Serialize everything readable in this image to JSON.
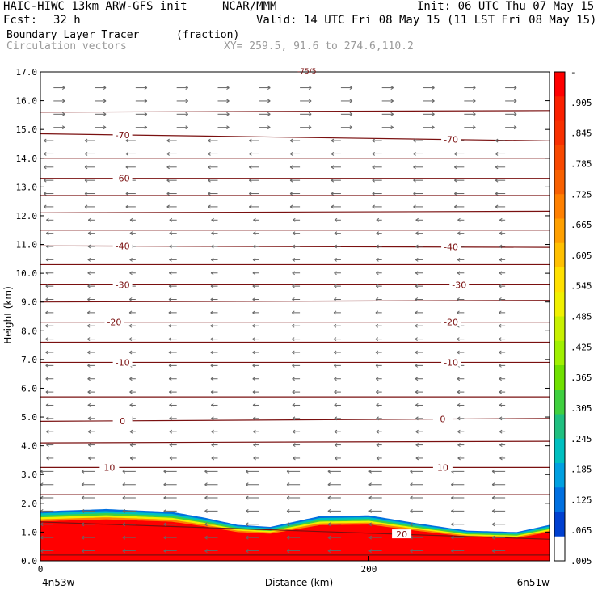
{
  "header": {
    "model": "HAIC-HIWC 13km ARW-GFS init",
    "org": "NCAR/MMM",
    "init": "Init: 06 UTC Thu 07 May 15",
    "fcst_label": "Fcst:",
    "fcst_value": "32 h",
    "valid": "Valid: 14 UTC Fri 08 May 15 (11 LST Fri 08 May 15)",
    "field_name": "Boundary Layer Tracer",
    "field_units": "(fraction)",
    "vector_name": "Circulation vectors",
    "xy": "XY= 259.5, 91.6 to 274.6,110.2"
  },
  "chart_data": {
    "type": "heatmap",
    "xlabel": "Distance (km)",
    "ylabel": "Height (km)",
    "xlim": [
      0,
      310
    ],
    "ylim": [
      0,
      17
    ],
    "x_ticks": [
      0,
      200
    ],
    "y_ticks": [
      "0.0",
      "1.0",
      "2.0",
      "3.0",
      "4.0",
      "5.0",
      "6.0",
      "7.0",
      "8.0",
      "9.0",
      "10.0",
      "11.0",
      "12.0",
      "13.0",
      "14.0",
      "15.0",
      "16.0",
      "17.0"
    ],
    "x_left_label": "4n53w",
    "x_right_label": "6n51w",
    "top_annotation": "-75/5",
    "tracer_top_km": {
      "x": [
        0,
        40,
        80,
        100,
        120,
        140,
        170,
        200,
        230,
        260,
        290,
        310
      ],
      "y": [
        1.72,
        1.8,
        1.7,
        1.5,
        1.25,
        1.18,
        1.55,
        1.58,
        1.3,
        1.05,
        1.0,
        1.25
      ]
    },
    "temperature_contours": [
      {
        "label": "-70",
        "heights_km": [
          14.85,
          14.6
        ],
        "label_x": [
          50,
          250
        ]
      },
      {
        "label": "-60",
        "heights_km": [
          13.3,
          13.3
        ],
        "label_x": [
          50,
          null
        ]
      },
      {
        "label": "-40",
        "heights_km": [
          10.95,
          10.9
        ],
        "label_x": [
          50,
          250
        ]
      },
      {
        "label": "-30",
        "heights_km": [
          9.6,
          9.6
        ],
        "label_x": [
          50,
          255
        ]
      },
      {
        "label": "-20",
        "heights_km": [
          8.3,
          8.3
        ],
        "label_x": [
          45,
          250
        ]
      },
      {
        "label": "-10",
        "heights_km": [
          6.9,
          6.9
        ],
        "label_x": [
          50,
          250
        ]
      },
      {
        "label": "0",
        "heights_km": [
          4.85,
          4.95
        ],
        "label_x": [
          50,
          245
        ]
      },
      {
        "label": "10",
        "heights_km": [
          3.25,
          3.25
        ],
        "label_x": [
          42,
          245
        ]
      },
      {
        "label": "20",
        "heights_km": [
          1.35,
          0.75
        ],
        "label_x": [
          null,
          220
        ]
      }
    ],
    "unlabeled_contour_heights_km": [
      15.6,
      14.0,
      12.7,
      12.1,
      11.5,
      10.3,
      9.0,
      7.6,
      5.7,
      4.1,
      2.3,
      0.2
    ],
    "colorbar": {
      "labels": [
        "-",
        ".905",
        ".845",
        ".785",
        ".725",
        ".665",
        ".605",
        ".545",
        ".485",
        ".425",
        ".365",
        ".305",
        ".245",
        ".185",
        ".125",
        ".065",
        ".005"
      ],
      "colors": [
        "#ff0000",
        "#fa2000",
        "#f83000",
        "#f84800",
        "#f86000",
        "#ff8000",
        "#ffa000",
        "#ffc000",
        "#ffe000",
        "#f0f000",
        "#c8f000",
        "#a0f000",
        "#70e000",
        "#40d040",
        "#20c080",
        "#00c0c0",
        "#00a0e0",
        "#0070e0",
        "#0040d0",
        "#ffffff"
      ]
    },
    "tracer_colors": {
      "surface": "#ff0000",
      "band2": "#ff8000",
      "band3": "#f0f000",
      "band4": "#40d040",
      "band5": "#00c0c0",
      "band6": "#0070e0"
    },
    "contour_color": "#7a1010",
    "vector_color": "#666666"
  }
}
